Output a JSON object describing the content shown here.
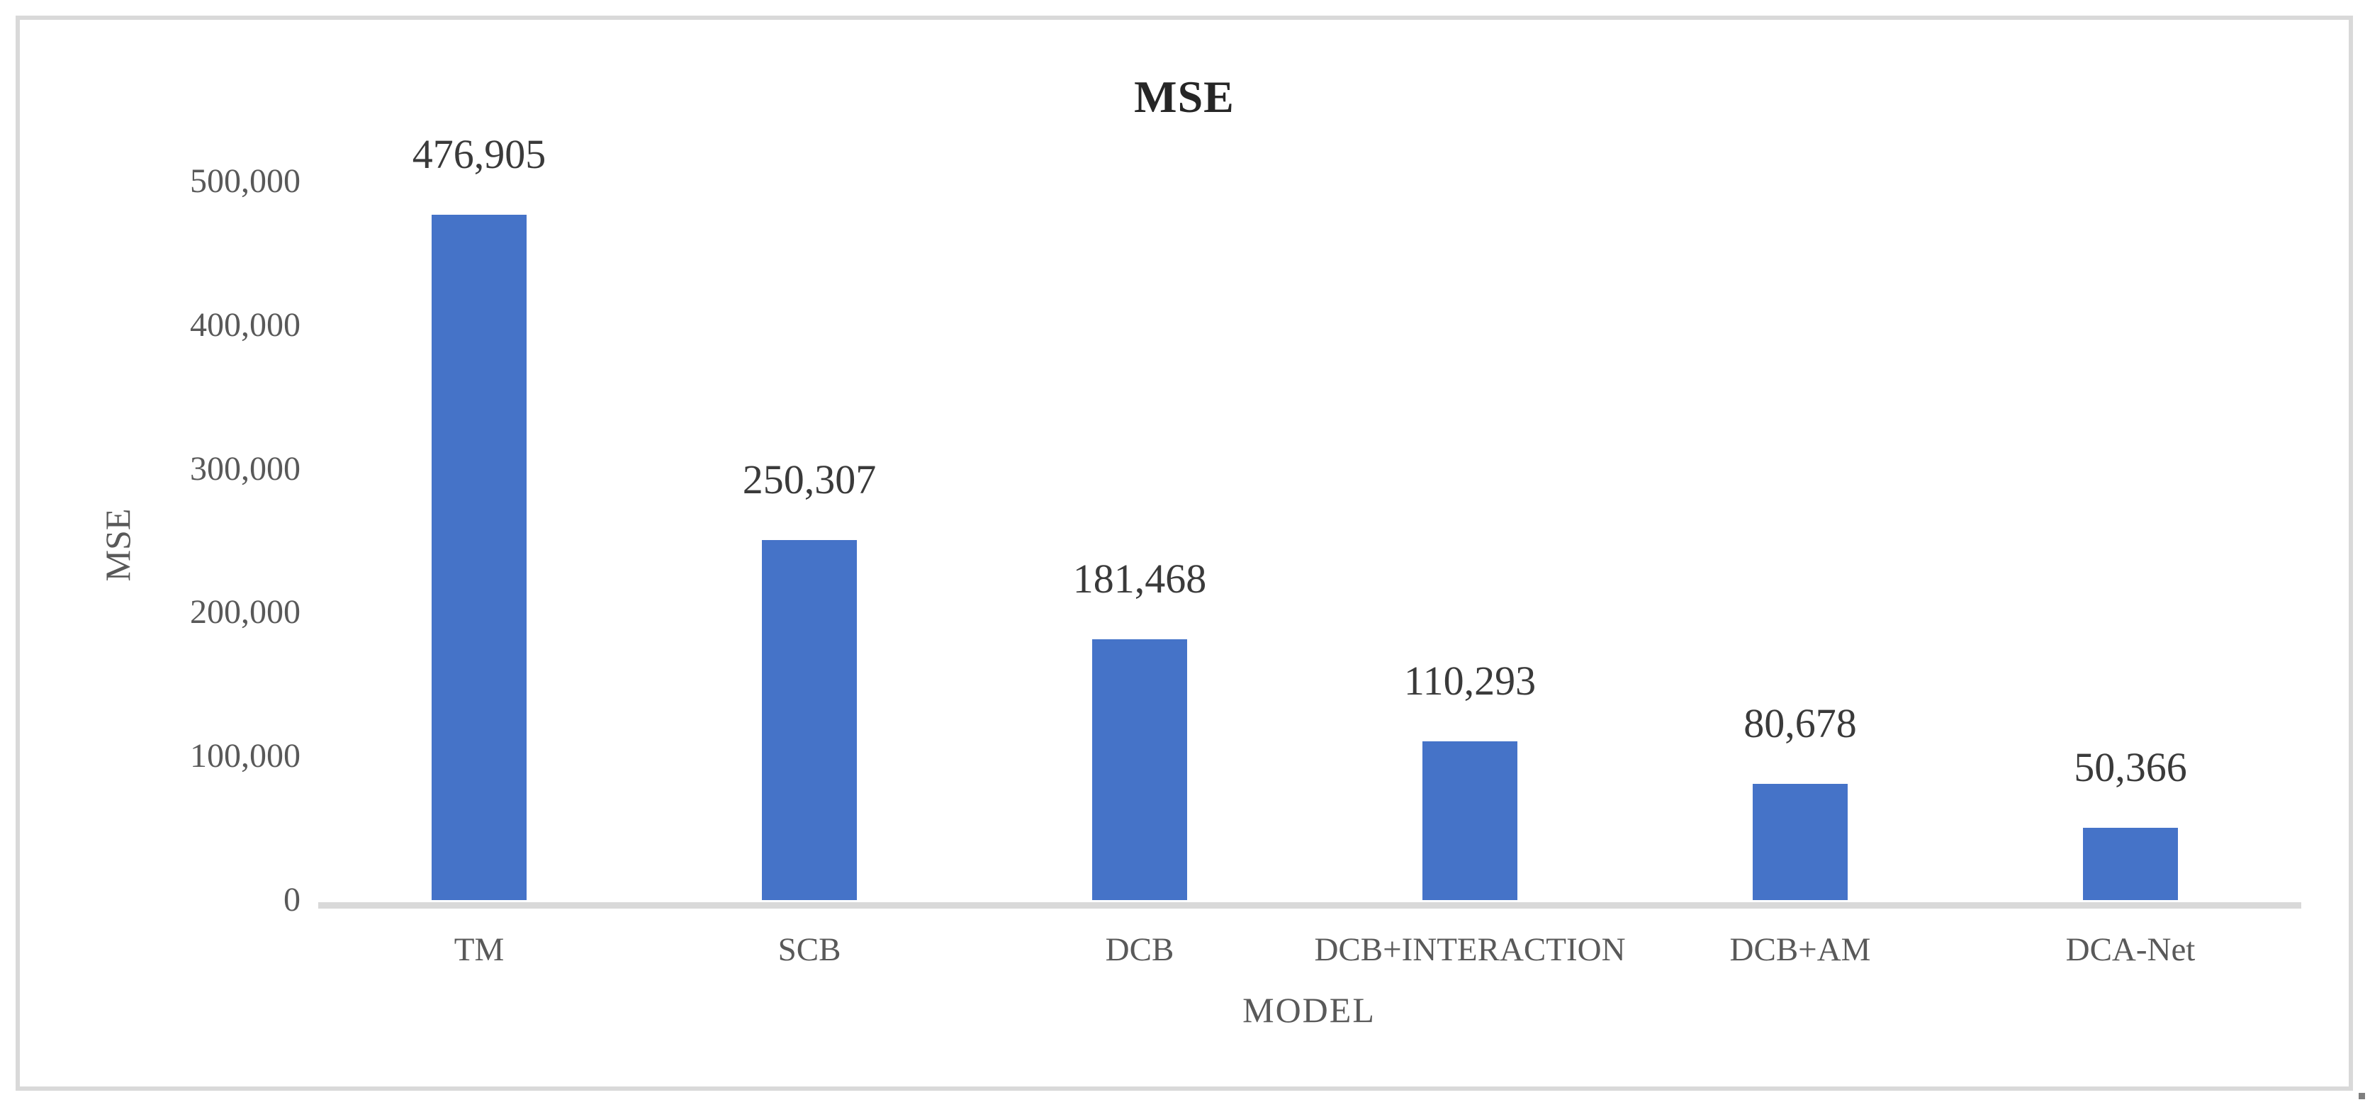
{
  "chart_data": {
    "type": "bar",
    "title": "MSE",
    "xlabel": "MODEL",
    "ylabel": "MSE",
    "categories": [
      "TM",
      "SCB",
      "DCB",
      "DCB+INTERACTION",
      "DCB+AM",
      "DCA-Net"
    ],
    "values": [
      476905,
      250307,
      181468,
      110293,
      80678,
      50366
    ],
    "data_labels": [
      "476,905",
      "250,307",
      "181,468",
      "110,293",
      "80,678",
      "50,366"
    ],
    "y_ticks": [
      0,
      100000,
      200000,
      300000,
      400000,
      500000
    ],
    "y_tick_labels": [
      "0",
      "100,000",
      "200,000",
      "300,000",
      "400,000",
      "500,000"
    ],
    "ylim": [
      0,
      500000
    ],
    "grid": false,
    "legend": false
  },
  "colors": {
    "bar": "#4573C8",
    "axis_line": "#D9D9D9",
    "frame_border": "#D9D9D9",
    "tick_text": "#595959",
    "data_label_text": "#3A3A3A",
    "title_text": "#262626"
  }
}
